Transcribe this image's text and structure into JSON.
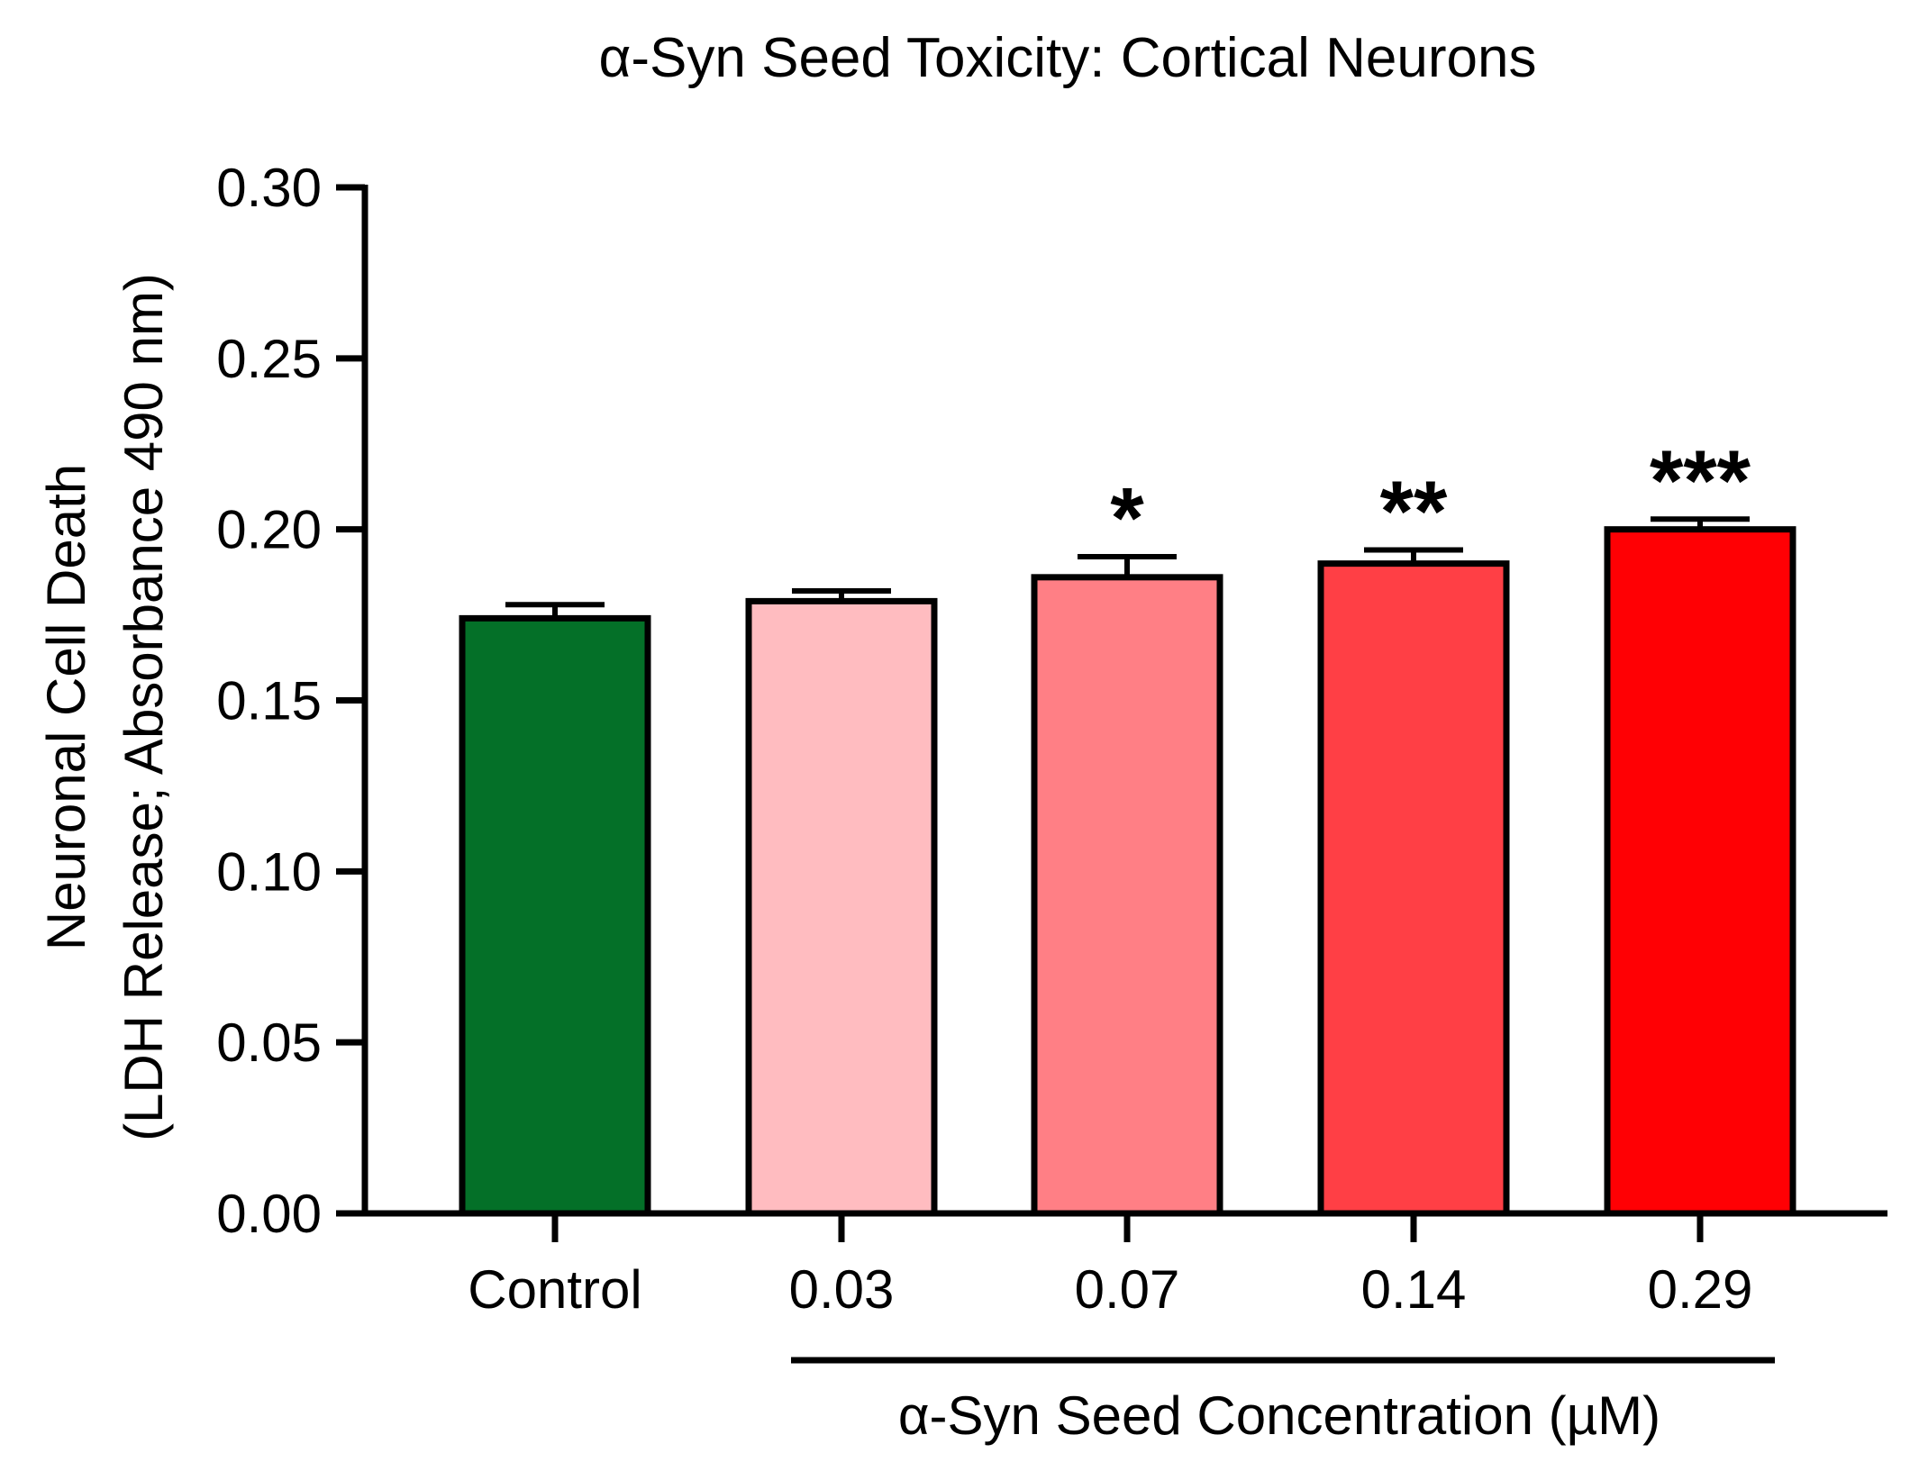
{
  "chart_data": {
    "type": "bar",
    "title": "α-Syn Seed Toxicity: Cortical Neurons",
    "categories": [
      "Control",
      "0.03",
      "0.07",
      "0.14",
      "0.29"
    ],
    "values": [
      0.174,
      0.179,
      0.186,
      0.19,
      0.2
    ],
    "errors": [
      0.004,
      0.003,
      0.006,
      0.004,
      0.003
    ],
    "significance": [
      "",
      "",
      "*",
      "**",
      "***"
    ],
    "colors": [
      "#047028",
      "#ffbcc0",
      "#ff7f85",
      "#ff3f45",
      "#ff0004"
    ],
    "ylabel_line1": "Neuronal Cell Death",
    "ylabel_line2": "(LDH Release; Absorbance 490 nm)",
    "xlabel": "α-Syn Seed Concentration (µM)",
    "ylim": [
      0,
      0.3
    ],
    "yticks": [
      "0.00",
      "0.05",
      "0.10",
      "0.15",
      "0.20",
      "0.25",
      "0.30"
    ],
    "grid": false,
    "legend": "none"
  }
}
